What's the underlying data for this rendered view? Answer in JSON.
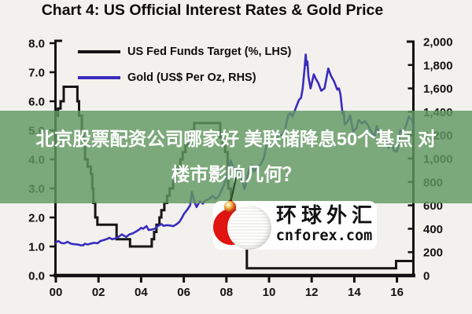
{
  "chart_data": {
    "type": "line",
    "title": "Chart 4: US Official Interest Rates & Gold Price",
    "x_axis": {
      "labels": [
        "00",
        "02",
        "04",
        "06",
        "08",
        "10",
        "12",
        "14",
        "16"
      ],
      "values": [
        2000,
        2002,
        2004,
        2006,
        2008,
        2010,
        2012,
        2014,
        2016
      ],
      "range": [
        2000,
        2016.8
      ]
    },
    "left_axis": {
      "labels": [
        "8.0",
        "7.0",
        "6.0",
        "5.0",
        "4.0",
        "3.0",
        "2.0",
        "1.0",
        "0.0"
      ],
      "values": [
        8,
        7,
        6,
        5,
        4,
        3,
        2,
        1,
        0
      ],
      "range": [
        0,
        8
      ]
    },
    "right_axis": {
      "labels": [
        "2,000",
        "1,800",
        "1,600",
        "1,400",
        "1,200",
        "1,000",
        "800",
        "600",
        "400",
        "200",
        "0"
      ],
      "values": [
        2000,
        1800,
        1600,
        1400,
        1200,
        1000,
        800,
        600,
        400,
        200,
        0
      ],
      "range": [
        0,
        2000
      ]
    },
    "series": [
      {
        "name": "US Fed Funds Target (%, LHS)",
        "axis": "left",
        "style": "step",
        "color": "#151515",
        "points": [
          [
            2000.0,
            5.5
          ],
          [
            2000.1,
            5.75
          ],
          [
            2000.22,
            6.0
          ],
          [
            2000.37,
            6.5
          ],
          [
            2001.01,
            6.0
          ],
          [
            2001.09,
            5.5
          ],
          [
            2001.22,
            5.0
          ],
          [
            2001.3,
            4.5
          ],
          [
            2001.37,
            4.0
          ],
          [
            2001.49,
            3.75
          ],
          [
            2001.64,
            3.5
          ],
          [
            2001.71,
            3.0
          ],
          [
            2001.76,
            2.5
          ],
          [
            2001.85,
            2.0
          ],
          [
            2001.95,
            1.75
          ],
          [
            2002.85,
            1.25
          ],
          [
            2003.48,
            1.0
          ],
          [
            2004.5,
            1.25
          ],
          [
            2004.61,
            1.5
          ],
          [
            2004.72,
            1.75
          ],
          [
            2004.86,
            2.0
          ],
          [
            2004.95,
            2.25
          ],
          [
            2005.09,
            2.5
          ],
          [
            2005.22,
            2.75
          ],
          [
            2005.34,
            3.0
          ],
          [
            2005.5,
            3.25
          ],
          [
            2005.61,
            3.5
          ],
          [
            2005.72,
            3.75
          ],
          [
            2005.84,
            4.0
          ],
          [
            2005.95,
            4.25
          ],
          [
            2006.08,
            4.5
          ],
          [
            2006.24,
            4.75
          ],
          [
            2006.36,
            5.0
          ],
          [
            2006.49,
            5.25
          ],
          [
            2007.71,
            4.75
          ],
          [
            2007.83,
            4.5
          ],
          [
            2007.94,
            4.25
          ],
          [
            2008.06,
            3.5
          ],
          [
            2008.09,
            3.0
          ],
          [
            2008.21,
            2.25
          ],
          [
            2008.33,
            2.0
          ],
          [
            2008.77,
            1.5
          ],
          [
            2008.83,
            1.0
          ],
          [
            2008.96,
            0.25
          ],
          [
            2015.96,
            0.5
          ]
        ]
      },
      {
        "name": "Gold (US$ Per Oz, RHS)",
        "axis": "right",
        "style": "line",
        "color": "#3a2bbd",
        "points": [
          [
            2000.0,
            283
          ],
          [
            2000.12,
            295
          ],
          [
            2000.25,
            278
          ],
          [
            2000.4,
            275
          ],
          [
            2000.55,
            288
          ],
          [
            2000.7,
            273
          ],
          [
            2000.85,
            268
          ],
          [
            2001.0,
            266
          ],
          [
            2001.15,
            260
          ],
          [
            2001.28,
            258
          ],
          [
            2001.35,
            272
          ],
          [
            2001.5,
            266
          ],
          [
            2001.65,
            274
          ],
          [
            2001.8,
            280
          ],
          [
            2001.95,
            276
          ],
          [
            2002.1,
            296
          ],
          [
            2002.25,
            304
          ],
          [
            2002.4,
            312
          ],
          [
            2002.5,
            323
          ],
          [
            2002.65,
            310
          ],
          [
            2002.8,
            318
          ],
          [
            2002.95,
            332
          ],
          [
            2003.1,
            352
          ],
          [
            2003.2,
            340
          ],
          [
            2003.3,
            330
          ],
          [
            2003.45,
            352
          ],
          [
            2003.6,
            360
          ],
          [
            2003.75,
            375
          ],
          [
            2003.9,
            392
          ],
          [
            2004.0,
            408
          ],
          [
            2004.1,
            400
          ],
          [
            2004.25,
            423
          ],
          [
            2004.35,
            390
          ],
          [
            2004.5,
            393
          ],
          [
            2004.65,
            400
          ],
          [
            2004.8,
            425
          ],
          [
            2004.95,
            440
          ],
          [
            2005.05,
            425
          ],
          [
            2005.2,
            430
          ],
          [
            2005.35,
            428
          ],
          [
            2005.5,
            422
          ],
          [
            2005.65,
            437
          ],
          [
            2005.8,
            460
          ],
          [
            2005.95,
            505
          ],
          [
            2006.0,
            525
          ],
          [
            2006.15,
            560
          ],
          [
            2006.3,
            600
          ],
          [
            2006.38,
            715
          ],
          [
            2006.5,
            630
          ],
          [
            2006.6,
            585
          ],
          [
            2006.75,
            635
          ],
          [
            2006.9,
            615
          ],
          [
            2007.0,
            640
          ],
          [
            2007.2,
            655
          ],
          [
            2007.35,
            680
          ],
          [
            2007.5,
            655
          ],
          [
            2007.65,
            680
          ],
          [
            2007.8,
            740
          ],
          [
            2007.95,
            800
          ],
          [
            2008.1,
            905
          ],
          [
            2008.2,
            985
          ],
          [
            2008.3,
            930
          ],
          [
            2008.45,
            880
          ],
          [
            2008.55,
            930
          ],
          [
            2008.7,
            830
          ],
          [
            2008.85,
            740
          ],
          [
            2008.95,
            800
          ],
          [
            2009.0,
            860
          ],
          [
            2009.1,
            920
          ],
          [
            2009.2,
            940
          ],
          [
            2009.3,
            890
          ],
          [
            2009.45,
            930
          ],
          [
            2009.6,
            950
          ],
          [
            2009.75,
            1000
          ],
          [
            2009.9,
            1130
          ],
          [
            2010.0,
            1110
          ],
          [
            2010.15,
            1115
          ],
          [
            2010.3,
            1150
          ],
          [
            2010.45,
            1210
          ],
          [
            2010.6,
            1195
          ],
          [
            2010.75,
            1250
          ],
          [
            2010.9,
            1370
          ],
          [
            2011.0,
            1390
          ],
          [
            2011.1,
            1360
          ],
          [
            2011.25,
            1430
          ],
          [
            2011.4,
            1500
          ],
          [
            2011.5,
            1520
          ],
          [
            2011.58,
            1600
          ],
          [
            2011.67,
            1780
          ],
          [
            2011.72,
            1890
          ],
          [
            2011.76,
            1800
          ],
          [
            2011.8,
            1830
          ],
          [
            2011.85,
            1700
          ],
          [
            2011.95,
            1600
          ],
          [
            2012.0,
            1640
          ],
          [
            2012.1,
            1720
          ],
          [
            2012.2,
            1680
          ],
          [
            2012.3,
            1650
          ],
          [
            2012.45,
            1580
          ],
          [
            2012.6,
            1600
          ],
          [
            2012.78,
            1770
          ],
          [
            2012.9,
            1710
          ],
          [
            2013.05,
            1660
          ],
          [
            2013.2,
            1590
          ],
          [
            2013.28,
            1600
          ],
          [
            2013.35,
            1550
          ],
          [
            2013.45,
            1380
          ],
          [
            2013.5,
            1400
          ],
          [
            2013.55,
            1290
          ],
          [
            2013.7,
            1320
          ],
          [
            2013.8,
            1370
          ],
          [
            2013.95,
            1230
          ],
          [
            2014.1,
            1260
          ],
          [
            2014.2,
            1330
          ],
          [
            2014.35,
            1300
          ],
          [
            2014.5,
            1320
          ],
          [
            2014.65,
            1280
          ],
          [
            2014.8,
            1230
          ],
          [
            2014.95,
            1190
          ],
          [
            2015.05,
            1280
          ],
          [
            2015.2,
            1200
          ],
          [
            2015.35,
            1210
          ],
          [
            2015.5,
            1160
          ],
          [
            2015.6,
            1090
          ],
          [
            2015.75,
            1140
          ],
          [
            2015.85,
            1070
          ],
          [
            2016.0,
            1060
          ],
          [
            2016.05,
            1100
          ],
          [
            2016.15,
            1240
          ],
          [
            2016.3,
            1230
          ],
          [
            2016.45,
            1290
          ],
          [
            2016.55,
            1360
          ],
          [
            2016.7,
            1330
          ],
          [
            2016.8,
            1260
          ]
        ]
      }
    ],
    "legend_position": "top-left-inside",
    "grid": false
  },
  "overlay": {
    "banner": {
      "background": "#629862",
      "lines": [
        "北京股票配资公司哪家好 美联储降息50个基点 对",
        "楼市影响几何？"
      ]
    }
  },
  "watermark": {
    "cn_name": "环球外汇",
    "domain": "cnforex.com",
    "accent_red": "#e01410"
  }
}
